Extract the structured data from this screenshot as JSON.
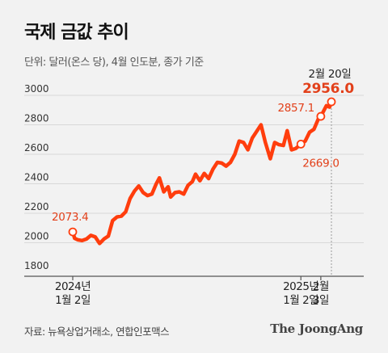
{
  "title": "국제 금값 추이",
  "subtitle": "단위: 달러(온스 당), 4월 인도분, 종가 기준",
  "source": "자료: 뉴욕상업거래소, 연합인포맥스",
  "logo": "The JoongAng",
  "colors": {
    "line": "#ff3d0d",
    "label": "#e2401a",
    "axis": "#555555",
    "grid": "#d8d8d8",
    "text": "#333333"
  },
  "chart_data": {
    "type": "line",
    "ylim": [
      1800,
      3000
    ],
    "yticks": [
      1800,
      2000,
      2200,
      2400,
      2600,
      2800,
      3000
    ],
    "x_start": "2024-01-02",
    "x_end": "2025-02-20",
    "xticks": [
      {
        "date": "2024-01-02",
        "lines": [
          "2024년",
          "1월 2일"
        ]
      },
      {
        "date": "2025-01-02",
        "lines": [
          "2025년",
          "1월 2일"
        ]
      },
      {
        "date": "2025-02-03",
        "lines": [
          "2월",
          "3일"
        ]
      }
    ],
    "series": [
      {
        "values": [
          [
            "2024-01-02",
            2073.4
          ],
          [
            "2024-01-05",
            2030
          ],
          [
            "2024-01-10",
            2020
          ],
          [
            "2024-01-17",
            2015
          ],
          [
            "2024-01-24",
            2025
          ],
          [
            "2024-01-31",
            2050
          ],
          [
            "2024-02-07",
            2040
          ],
          [
            "2024-02-14",
            1995
          ],
          [
            "2024-02-21",
            2025
          ],
          [
            "2024-02-28",
            2045
          ],
          [
            "2024-03-06",
            2150
          ],
          [
            "2024-03-13",
            2175
          ],
          [
            "2024-03-20",
            2180
          ],
          [
            "2024-03-27",
            2210
          ],
          [
            "2024-04-03",
            2300
          ],
          [
            "2024-04-10",
            2350
          ],
          [
            "2024-04-17",
            2385
          ],
          [
            "2024-04-24",
            2340
          ],
          [
            "2024-05-01",
            2320
          ],
          [
            "2024-05-08",
            2330
          ],
          [
            "2024-05-15",
            2400
          ],
          [
            "2024-05-20",
            2440
          ],
          [
            "2024-05-27",
            2345
          ],
          [
            "2024-06-03",
            2380
          ],
          [
            "2024-06-07",
            2310
          ],
          [
            "2024-06-14",
            2340
          ],
          [
            "2024-06-21",
            2345
          ],
          [
            "2024-06-28",
            2330
          ],
          [
            "2024-07-05",
            2390
          ],
          [
            "2024-07-12",
            2415
          ],
          [
            "2024-07-17",
            2465
          ],
          [
            "2024-07-24",
            2420
          ],
          [
            "2024-07-31",
            2470
          ],
          [
            "2024-08-07",
            2435
          ],
          [
            "2024-08-14",
            2500
          ],
          [
            "2024-08-21",
            2545
          ],
          [
            "2024-08-28",
            2540
          ],
          [
            "2024-09-04",
            2520
          ],
          [
            "2024-09-11",
            2545
          ],
          [
            "2024-09-18",
            2600
          ],
          [
            "2024-09-25",
            2690
          ],
          [
            "2024-10-02",
            2680
          ],
          [
            "2024-10-09",
            2630
          ],
          [
            "2024-10-16",
            2710
          ],
          [
            "2024-10-23",
            2755
          ],
          [
            "2024-10-30",
            2800
          ],
          [
            "2024-11-06",
            2680
          ],
          [
            "2024-11-14",
            2570
          ],
          [
            "2024-11-21",
            2680
          ],
          [
            "2024-11-28",
            2665
          ],
          [
            "2024-12-05",
            2660
          ],
          [
            "2024-12-11",
            2760
          ],
          [
            "2024-12-18",
            2630
          ],
          [
            "2024-12-25",
            2640
          ],
          [
            "2025-01-02",
            2669.0
          ],
          [
            "2025-01-09",
            2690
          ],
          [
            "2025-01-16",
            2750
          ],
          [
            "2025-01-23",
            2770
          ],
          [
            "2025-01-30",
            2840
          ],
          [
            "2025-02-03",
            2857.1
          ],
          [
            "2025-02-07",
            2890
          ],
          [
            "2025-02-12",
            2930
          ],
          [
            "2025-02-17",
            2920
          ],
          [
            "2025-02-20",
            2956.0
          ]
        ]
      }
    ],
    "annotations": [
      {
        "date": "2024-01-02",
        "value": 2073.4,
        "label": "2073.4",
        "pos": "above"
      },
      {
        "date": "2025-01-02",
        "value": 2669.0,
        "label": "2669.0",
        "pos": "right"
      },
      {
        "date": "2025-02-03",
        "value": 2857.1,
        "label": "2857.1",
        "pos": "left"
      },
      {
        "date": "2025-02-20",
        "value": 2956.0,
        "label": "2956.0",
        "header": "2월 20일",
        "pos": "top"
      }
    ]
  }
}
